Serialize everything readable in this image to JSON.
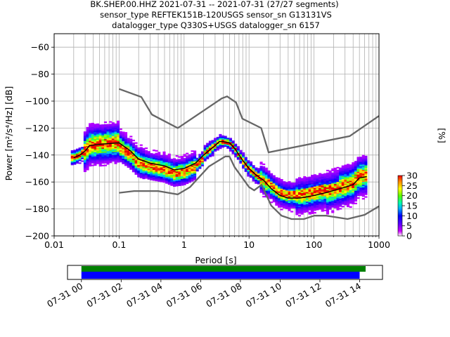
{
  "title_lines": [
    "BK.SHEP.00.HHZ   2021-07-31 -- 2021-07-31  (27/27 segments)",
    "sensor_type REFTEK151B-120USGS sensor_sn G13131VS",
    "datalogger_type Q330S+USGS datalogger_sn 6157"
  ],
  "chart_data": {
    "type": "heatmap",
    "xlabel": "Period [s]",
    "ylabel": "Power [m²/s⁴/Hz] [dB]",
    "xscale": "log",
    "xlim": [
      0.01,
      1000
    ],
    "ylim": [
      -200,
      -50
    ],
    "x_ticks": [
      0.01,
      0.1,
      1,
      10,
      100,
      1000
    ],
    "x_tick_labels": [
      "0.01",
      "0.1",
      "1",
      "10",
      "100",
      "1000"
    ],
    "y_ticks": [
      -200,
      -180,
      -160,
      -140,
      -120,
      -100,
      -80,
      -60
    ],
    "y_tick_labels": [
      "−200",
      "−180",
      "−160",
      "−140",
      "−120",
      "−100",
      "−80",
      "−60"
    ],
    "grid": true,
    "colorbar": {
      "label": "[%]",
      "range": [
        0,
        30
      ],
      "ticks": [
        0,
        5,
        10,
        15,
        20,
        25,
        30
      ],
      "tick_labels": [
        "0",
        "5",
        "10",
        "15",
        "20",
        "25",
        "30"
      ]
    },
    "noise_models": [
      {
        "points": [
          [
            0.1,
            -91
          ],
          [
            0.22,
            -97
          ],
          [
            0.32,
            -110
          ],
          [
            0.8,
            -120
          ],
          [
            3.8,
            -98
          ],
          [
            4.6,
            -96.5
          ],
          [
            6.3,
            -101
          ],
          [
            7.9,
            -113
          ],
          [
            15.4,
            -120
          ],
          [
            20,
            -138
          ],
          [
            354,
            -126
          ],
          [
            1000,
            -111
          ]
        ]
      },
      {
        "points": [
          [
            0.1,
            -168
          ],
          [
            0.17,
            -166.7
          ],
          [
            0.4,
            -166.7
          ],
          [
            0.8,
            -169.2
          ],
          [
            1.24,
            -163.7
          ],
          [
            2.4,
            -148.6
          ],
          [
            4.3,
            -141.1
          ],
          [
            5,
            -141.1
          ],
          [
            6,
            -149
          ],
          [
            10,
            -163.8
          ],
          [
            12,
            -166.2
          ],
          [
            15.6,
            -162.1
          ],
          [
            21.9,
            -177.5
          ],
          [
            31.6,
            -185
          ],
          [
            45,
            -187.5
          ],
          [
            70,
            -187.5
          ],
          [
            101,
            -185
          ],
          [
            154,
            -185
          ],
          [
            328,
            -187.5
          ],
          [
            600,
            -184.4
          ],
          [
            1000,
            -178
          ]
        ]
      }
    ],
    "median": {
      "points": [
        [
          0.02,
          -142
        ],
        [
          0.025,
          -140
        ],
        [
          0.03,
          -137
        ],
        [
          0.035,
          -133
        ],
        [
          0.05,
          -132
        ],
        [
          0.1,
          -131
        ],
        [
          0.15,
          -137
        ],
        [
          0.2,
          -143
        ],
        [
          0.3,
          -146
        ],
        [
          0.5,
          -148
        ],
        [
          0.7,
          -151
        ],
        [
          1,
          -150
        ],
        [
          1.5,
          -146
        ],
        [
          2,
          -140
        ],
        [
          3,
          -133
        ],
        [
          3.5,
          -130
        ],
        [
          4,
          -130
        ],
        [
          5,
          -131
        ],
        [
          6,
          -135
        ],
        [
          8,
          -144
        ],
        [
          10,
          -150
        ],
        [
          13,
          -155
        ],
        [
          17,
          -159
        ],
        [
          22,
          -165
        ],
        [
          30,
          -170
        ],
        [
          40,
          -172
        ],
        [
          60,
          -172
        ],
        [
          100,
          -170
        ],
        [
          150,
          -168
        ],
        [
          250,
          -165
        ],
        [
          400,
          -162
        ],
        [
          500,
          -157
        ],
        [
          650,
          -156
        ]
      ]
    },
    "timeline": {
      "x_tick_labels": [
        "07-31 00",
        "07-31 02",
        "07-31 04",
        "07-31 06",
        "07-31 08",
        "07-31 10",
        "07-31 12",
        "07-31 14"
      ],
      "x_tick_hours": [
        0,
        2,
        4,
        6,
        8,
        10,
        12,
        14
      ],
      "xlim_hours": [
        -0.7,
        15.15
      ],
      "data_bar_hours": [
        0,
        14.3
      ],
      "psd_bar_hours": [
        0,
        14.0
      ],
      "data_color": "#008000",
      "psd_color": "#0000ff"
    }
  }
}
